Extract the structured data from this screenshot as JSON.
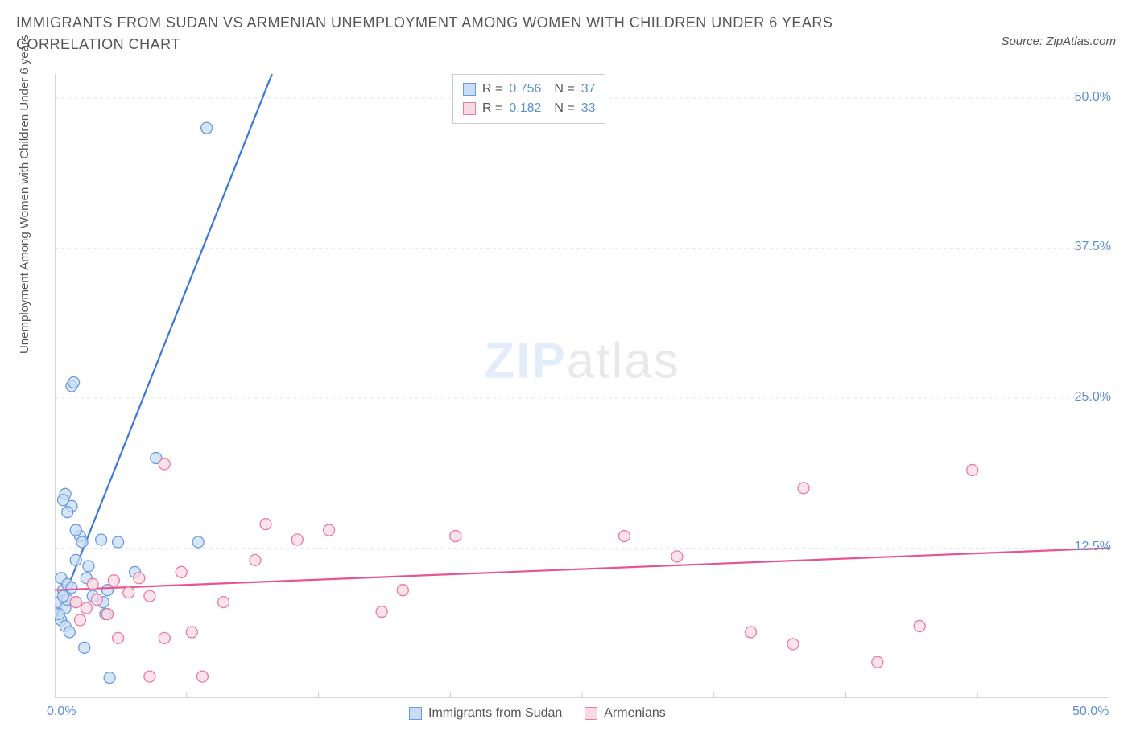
{
  "title": "IMMIGRANTS FROM SUDAN VS ARMENIAN UNEMPLOYMENT AMONG WOMEN WITH CHILDREN UNDER 6 YEARS CORRELATION CHART",
  "source_label": "Source: ZipAtlas.com",
  "watermark_zip": "ZIP",
  "watermark_atlas": "atlas",
  "chart": {
    "type": "scatter",
    "ylabel": "Unemployment Among Women with Children Under 6 years",
    "xlim": [
      0,
      50
    ],
    "ylim": [
      0,
      52
    ],
    "x_ticks": [
      0,
      50
    ],
    "x_tick_labels": [
      "0.0%",
      "50.0%"
    ],
    "x_minor_ticks": [
      6.25,
      12.5,
      18.75,
      25,
      31.25,
      37.5,
      43.75
    ],
    "y_ticks": [
      12.5,
      25.0,
      37.5,
      50.0
    ],
    "y_tick_labels": [
      "12.5%",
      "25.0%",
      "37.5%",
      "50.0%"
    ],
    "grid_color": "#e8e8e8",
    "axis_color": "#cccccc",
    "background_color": "#ffffff",
    "series": [
      {
        "name": "Immigrants from Sudan",
        "marker_fill": "#c9ddf4",
        "marker_stroke": "#6a9be0",
        "line_color": "#3b78d8",
        "marker_radius": 7,
        "R": "0.756",
        "N": "37",
        "trend": {
          "x1": 0,
          "y1": 6.5,
          "x2": 10.3,
          "y2": 52
        },
        "points": [
          [
            0.2,
            8.0
          ],
          [
            0.3,
            6.5
          ],
          [
            0.4,
            9.0
          ],
          [
            0.5,
            7.5
          ],
          [
            0.3,
            10.0
          ],
          [
            0.6,
            8.2
          ],
          [
            0.2,
            7.0
          ],
          [
            0.6,
            9.5
          ],
          [
            0.4,
            8.5
          ],
          [
            0.8,
            9.2
          ],
          [
            0.5,
            6.0
          ],
          [
            1.8,
            8.5
          ],
          [
            1.5,
            10.0
          ],
          [
            2.5,
            9.0
          ],
          [
            1.0,
            11.5
          ],
          [
            2.3,
            8.0
          ],
          [
            1.2,
            13.5
          ],
          [
            1.3,
            13.0
          ],
          [
            1.0,
            14.0
          ],
          [
            2.2,
            13.2
          ],
          [
            0.8,
            16.0
          ],
          [
            0.5,
            17.0
          ],
          [
            0.6,
            15.5
          ],
          [
            0.4,
            16.5
          ],
          [
            3.0,
            13.0
          ],
          [
            0.8,
            26.0
          ],
          [
            0.9,
            26.3
          ],
          [
            3.8,
            10.5
          ],
          [
            4.8,
            20.0
          ],
          [
            2.6,
            1.7
          ],
          [
            1.4,
            4.2
          ],
          [
            7.2,
            47.5
          ],
          [
            6.8,
            13.0
          ],
          [
            2.4,
            7.0
          ],
          [
            1.0,
            8.0
          ],
          [
            0.7,
            5.5
          ],
          [
            1.6,
            11.0
          ]
        ]
      },
      {
        "name": "Armenians",
        "marker_fill": "#f9d9e3",
        "marker_stroke": "#e87ba4",
        "line_color": "#e85394",
        "marker_radius": 7,
        "R": "0.182",
        "N": "33",
        "trend": {
          "x1": 0,
          "y1": 9.0,
          "x2": 50,
          "y2": 12.5
        },
        "points": [
          [
            1.2,
            6.5
          ],
          [
            2.0,
            8.2
          ],
          [
            2.8,
            9.8
          ],
          [
            3.5,
            8.8
          ],
          [
            4.0,
            10.0
          ],
          [
            1.0,
            8.0
          ],
          [
            1.5,
            7.5
          ],
          [
            4.5,
            8.5
          ],
          [
            5.2,
            5.0
          ],
          [
            6.0,
            10.5
          ],
          [
            6.5,
            5.5
          ],
          [
            7.0,
            1.8
          ],
          [
            9.5,
            11.5
          ],
          [
            8.0,
            8.0
          ],
          [
            4.5,
            1.8
          ],
          [
            5.2,
            19.5
          ],
          [
            10.0,
            14.5
          ],
          [
            11.5,
            13.2
          ],
          [
            13.0,
            14.0
          ],
          [
            15.5,
            7.2
          ],
          [
            19.0,
            13.5
          ],
          [
            16.5,
            9.0
          ],
          [
            27.0,
            13.5
          ],
          [
            29.5,
            11.8
          ],
          [
            33.0,
            5.5
          ],
          [
            35.0,
            4.5
          ],
          [
            35.5,
            17.5
          ],
          [
            39.0,
            3.0
          ],
          [
            43.5,
            19.0
          ],
          [
            41.0,
            6.0
          ],
          [
            2.5,
            7.0
          ],
          [
            1.8,
            9.5
          ],
          [
            3.0,
            5.0
          ]
        ]
      }
    ],
    "legend_bottom": [
      {
        "label": "Immigrants from Sudan",
        "fill": "#c9ddf4",
        "stroke": "#6a9be0"
      },
      {
        "label": "Armenians",
        "fill": "#f9d9e3",
        "stroke": "#e87ba4"
      }
    ]
  }
}
